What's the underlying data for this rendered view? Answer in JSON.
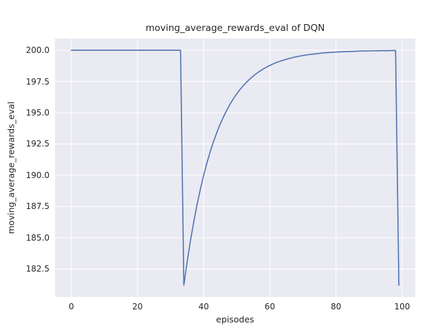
{
  "chart_data": {
    "type": "line",
    "title": "moving_average_rewards_eval of DQN",
    "xlabel": "episodes",
    "ylabel": "moving_average_rewards_eval",
    "xlim": [
      -4.95,
      103.95
    ],
    "ylim": [
      180.26,
      200.94
    ],
    "xticks": [
      0,
      20,
      40,
      60,
      80,
      100
    ],
    "xtick_labels": [
      "0",
      "20",
      "40",
      "60",
      "80",
      "100"
    ],
    "yticks": [
      182.5,
      185.0,
      187.5,
      190.0,
      192.5,
      195.0,
      197.5,
      200.0
    ],
    "ytick_labels": [
      "182.5",
      "185.0",
      "187.5",
      "190.0",
      "192.5",
      "195.0",
      "197.5",
      "200.0"
    ],
    "grid": true,
    "legend": "none",
    "background_color": "#eaeaf2",
    "grid_color": "#ffffff",
    "line_color": "#4c72b0",
    "series": [
      {
        "name": "moving_average_rewards_eval",
        "x": [
          0,
          1,
          2,
          3,
          4,
          5,
          6,
          7,
          8,
          9,
          10,
          11,
          12,
          13,
          14,
          15,
          16,
          17,
          18,
          19,
          20,
          21,
          22,
          23,
          24,
          25,
          26,
          27,
          28,
          29,
          30,
          31,
          32,
          33,
          34,
          35,
          36,
          37,
          38,
          39,
          40,
          41,
          42,
          43,
          44,
          45,
          46,
          47,
          48,
          49,
          50,
          51,
          52,
          53,
          54,
          55,
          56,
          57,
          58,
          59,
          60,
          61,
          62,
          63,
          64,
          65,
          66,
          67,
          68,
          69,
          70,
          71,
          72,
          73,
          74,
          75,
          76,
          77,
          78,
          79,
          80,
          81,
          82,
          83,
          84,
          85,
          86,
          87,
          88,
          89,
          90,
          91,
          92,
          93,
          94,
          95,
          96,
          97,
          98,
          99
        ],
        "y": [
          200,
          200,
          200,
          200,
          200,
          200,
          200,
          200,
          200,
          200,
          200,
          200,
          200,
          200,
          200,
          200,
          200,
          200,
          200,
          200,
          200,
          200,
          200,
          200,
          200,
          200,
          200,
          200,
          200,
          200,
          200,
          200,
          200,
          200,
          181.2,
          183.08,
          184.77,
          186.29,
          187.66,
          188.9,
          190.01,
          191.01,
          191.91,
          192.72,
          193.44,
          194.1,
          194.69,
          195.22,
          195.7,
          196.13,
          196.52,
          196.87,
          197.18,
          197.46,
          197.71,
          197.94,
          198.15,
          198.33,
          198.5,
          198.65,
          198.78,
          198.91,
          199.02,
          199.11,
          199.2,
          199.28,
          199.35,
          199.42,
          199.48,
          199.53,
          199.58,
          199.62,
          199.66,
          199.69,
          199.72,
          199.75,
          199.78,
          199.8,
          199.82,
          199.84,
          199.85,
          199.87,
          199.88,
          199.89,
          199.9,
          199.91,
          199.92,
          199.93,
          199.94,
          199.94,
          199.95,
          199.95,
          199.96,
          199.96,
          199.97,
          199.97,
          199.97,
          199.98,
          199.98,
          181.2
        ]
      }
    ]
  }
}
